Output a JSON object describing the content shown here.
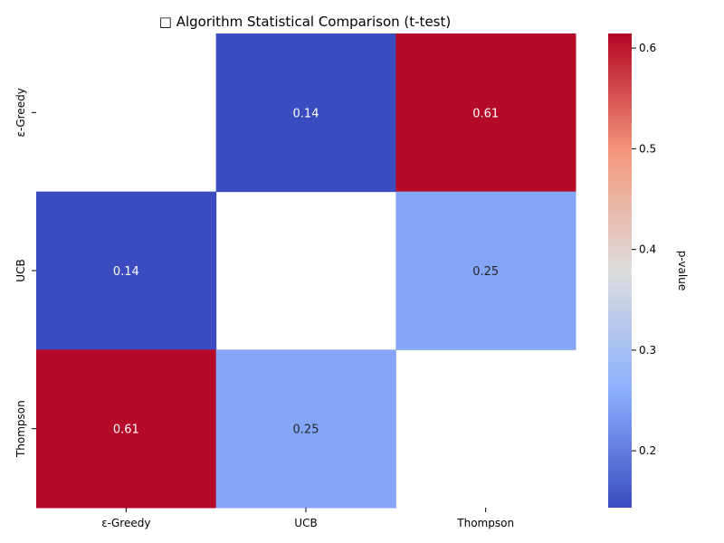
{
  "chart_data": {
    "type": "heatmap",
    "title": "□ Algorithm Statistical Comparison (t-test)",
    "rows": [
      "ε-Greedy",
      "UCB",
      "Thompson"
    ],
    "columns": [
      "ε-Greedy",
      "UCB",
      "Thompson"
    ],
    "values": [
      [
        null,
        0.14,
        0.61
      ],
      [
        0.14,
        null,
        0.25
      ],
      [
        0.61,
        0.25,
        null
      ]
    ],
    "annotations": [
      [
        null,
        "0.14",
        "0.61"
      ],
      [
        "0.14",
        null,
        "0.25"
      ],
      [
        "0.61",
        "0.25",
        null
      ]
    ],
    "colorbar": {
      "label": "p-value",
      "range": [
        0.1435,
        0.6145
      ],
      "ticks": [
        "0.2",
        "0.3",
        "0.4",
        "0.5",
        "0.6"
      ],
      "tick_values": [
        0.2,
        0.3,
        0.4,
        0.5,
        0.6
      ],
      "colormap": "coolwarm"
    },
    "grid": false
  }
}
